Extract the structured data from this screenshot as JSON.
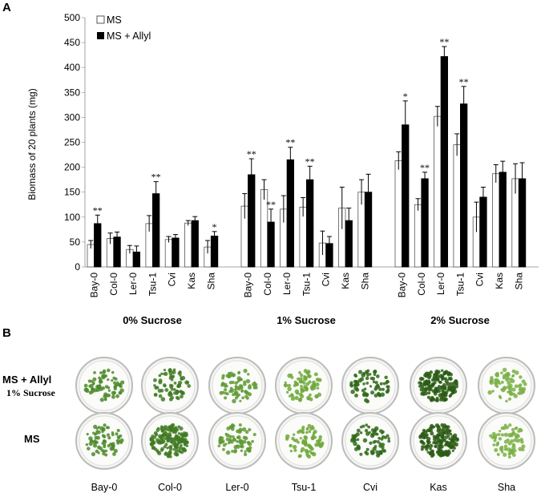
{
  "panels": {
    "a": "A",
    "b": "B"
  },
  "colors": {
    "ms": "#ffffff",
    "allyl": "#000000",
    "stroke": "#555555",
    "axis": "#888888"
  },
  "chart_data": {
    "type": "bar",
    "ylabel": "Biomass of 20 plants (mg)",
    "ylim": [
      0,
      500
    ],
    "yticks": [
      0,
      50,
      100,
      150,
      200,
      250,
      300,
      350,
      400,
      450,
      500
    ],
    "legend": [
      "MS",
      "MS + Allyl"
    ],
    "legend_position": "top-left",
    "groups": [
      {
        "label": "0% Sucrose",
        "categories": [
          "Bay-0",
          "Col-0",
          "Ler-0",
          "Tsu-1",
          "Cvi",
          "Kas",
          "Sha"
        ],
        "series": [
          {
            "name": "MS",
            "values": [
              45,
              57,
              35,
              87,
              55,
              88,
              40
            ],
            "errors": [
              8,
              11,
              8,
              16,
              6,
              5,
              13
            ]
          },
          {
            "name": "MS + Allyl",
            "values": [
              87,
              60,
              30,
              147,
              58,
              93,
              62
            ],
            "errors": [
              17,
              10,
              12,
              24,
              7,
              8,
              9
            ]
          }
        ],
        "significance": [
          "**",
          "",
          "",
          "**",
          "",
          "",
          "*"
        ]
      },
      {
        "label": "1% Sucrose",
        "categories": [
          "Bay-0",
          "Col-0",
          "Ler-0",
          "Tsu-1",
          "Cvi",
          "Kas",
          "Sha"
        ],
        "series": [
          {
            "name": "MS",
            "values": [
              122,
              155,
              116,
              120,
              48,
              118,
              150
            ],
            "errors": [
              25,
              20,
              27,
              19,
              24,
              42,
              25
            ]
          },
          {
            "name": "MS + Allyl",
            "values": [
              185,
              90,
              215,
              175,
              47,
              93,
              150
            ],
            "errors": [
              32,
              26,
              25,
              27,
              14,
              25,
              36
            ]
          }
        ],
        "significance": [
          "**",
          "**",
          "**",
          "**",
          "",
          "",
          ""
        ]
      },
      {
        "label": "2% Sucrose",
        "categories": [
          "Bay-0",
          "Col-0",
          "Ler-0",
          "Tsu-1",
          "Cvi",
          "Kas",
          "Sha"
        ],
        "series": [
          {
            "name": "MS",
            "values": [
              213,
              125,
              302,
              245,
              100,
              187,
              177
            ],
            "errors": [
              18,
              12,
              20,
              22,
              30,
              18,
              30
            ]
          },
          {
            "name": "MS + Allyl",
            "values": [
              285,
              177,
              422,
              327,
              140,
              190,
              177
            ],
            "errors": [
              48,
              13,
              20,
              35,
              20,
              22,
              32
            ]
          }
        ],
        "significance": [
          "*",
          "**",
          "**",
          "**",
          "",
          "",
          ""
        ]
      }
    ]
  },
  "panel_b": {
    "rows": [
      {
        "label": "MS + Allyl",
        "sublabel": "1% Sucrose"
      },
      {
        "label": "MS",
        "sublabel": ""
      }
    ],
    "cultivars": [
      "Bay-0",
      "Col-0",
      "Ler-0",
      "Tsu-1",
      "Cvi",
      "Kas",
      "Sha"
    ],
    "plant_colors": [
      "#4c8a2a",
      "#3f7a22",
      "#5e9a34",
      "#6ea83a",
      "#2f6818",
      "#2a5c14",
      "#7ab046"
    ]
  }
}
